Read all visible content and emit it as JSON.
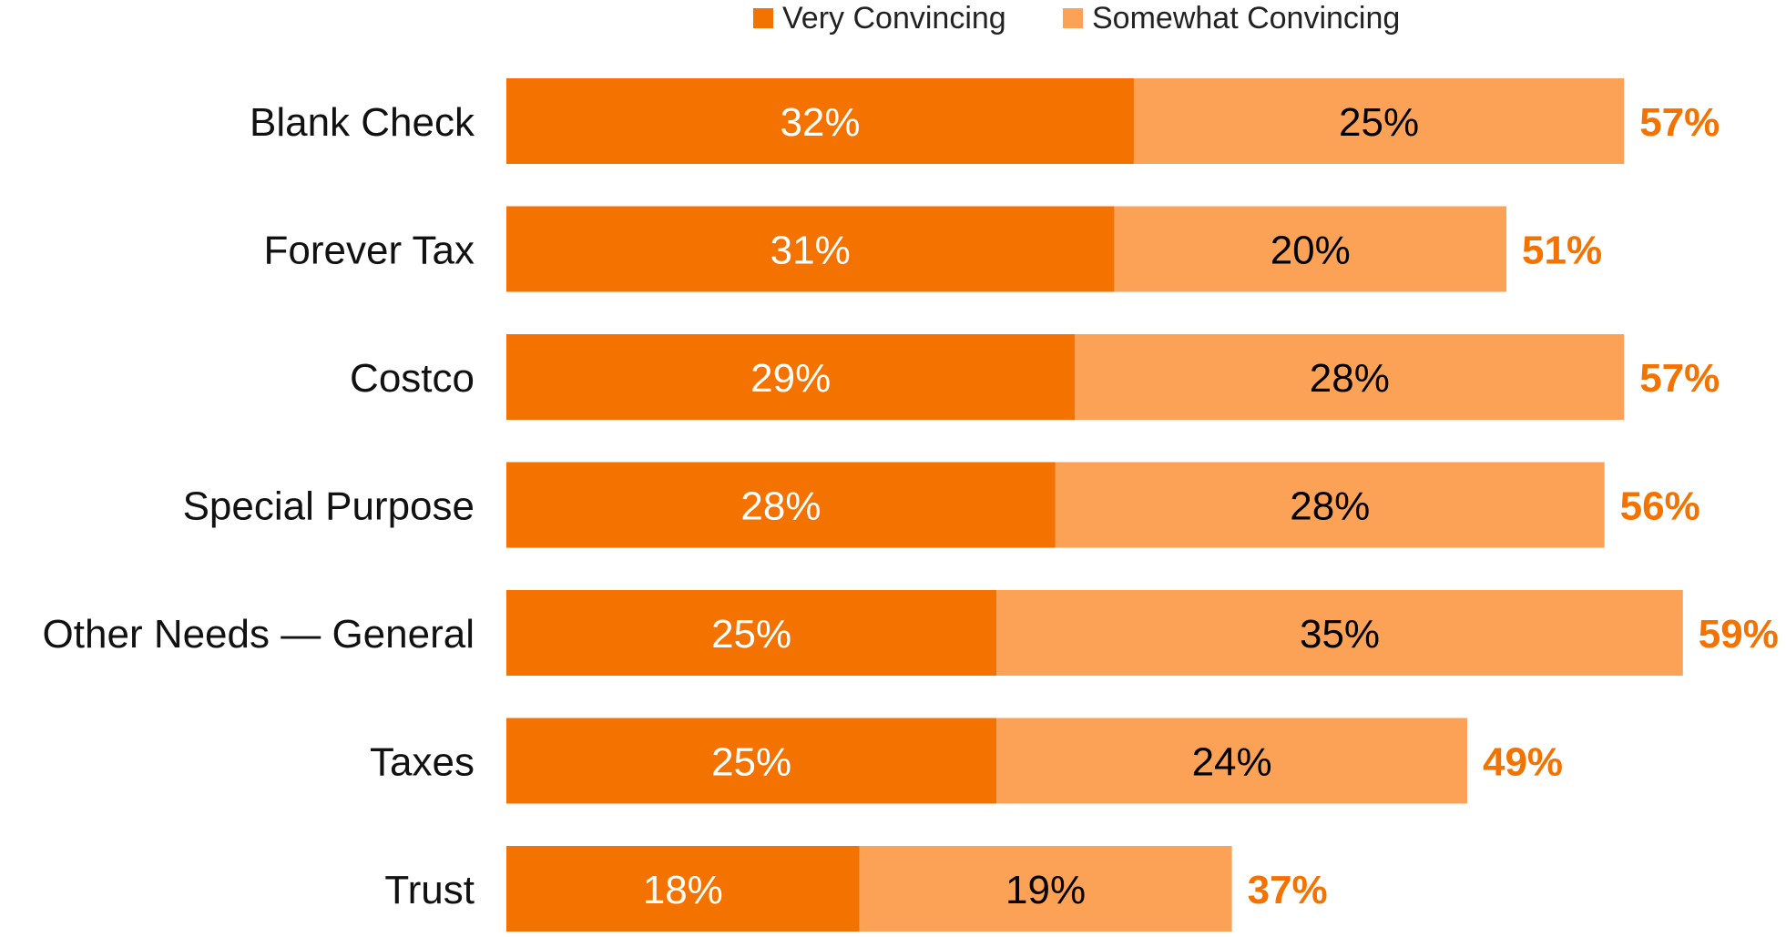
{
  "chart_data": {
    "type": "bar",
    "orientation": "horizontal",
    "stacked": true,
    "categories": [
      "Blank Check",
      "Forever Tax",
      "Costco",
      "Special Purpose",
      "Other Needs — General",
      "Taxes",
      "Trust"
    ],
    "series": [
      {
        "name": "Very Convincing",
        "color": "#f47200",
        "values": [
          32,
          31,
          29,
          28,
          25,
          25,
          18
        ],
        "labels": [
          "32%",
          "31%",
          "29%",
          "28%",
          "25%",
          "25%",
          "18%"
        ],
        "label_color": "#ffffff"
      },
      {
        "name": "Somewhat Convincing",
        "color": "#fba257",
        "values": [
          25,
          20,
          28,
          28,
          35,
          24,
          19
        ],
        "labels": [
          "25%",
          "20%",
          "28%",
          "28%",
          "35%",
          "24%",
          "19%"
        ],
        "label_color": "#000000"
      }
    ],
    "totals": [
      57,
      51,
      57,
      56,
      59,
      49,
      37
    ],
    "total_labels": [
      "57%",
      "51%",
      "57%",
      "56%",
      "59%",
      "49%",
      "37%"
    ],
    "total_label_color": "#f47200",
    "legend_position": "top",
    "grid": false,
    "x_axis_visible": false,
    "xlim": [
      0,
      60
    ],
    "title": "",
    "xlabel": "",
    "ylabel": ""
  }
}
